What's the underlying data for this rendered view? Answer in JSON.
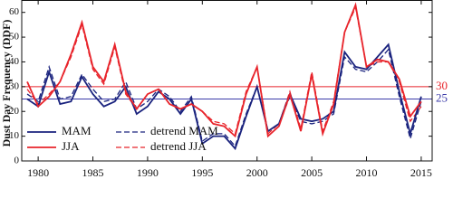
{
  "chart_data": {
    "type": "line",
    "y_label": "Dust Day Frequency (DDF)",
    "x": [
      1979,
      1980,
      1981,
      1982,
      1983,
      1984,
      1985,
      1986,
      1987,
      1988,
      1989,
      1990,
      1991,
      1992,
      1993,
      1994,
      1995,
      1996,
      1997,
      1998,
      1999,
      2000,
      2001,
      2002,
      2003,
      2004,
      2005,
      2006,
      2007,
      2008,
      2009,
      2010,
      2011,
      2012,
      2013,
      2014,
      2015
    ],
    "series": [
      {
        "name": "MAM",
        "color": "#1a237e",
        "dash": false,
        "values": [
          25,
          22,
          36,
          23,
          24,
          34,
          27,
          22,
          24,
          30,
          19,
          22,
          28,
          25,
          19,
          25,
          7,
          10,
          10,
          5,
          18,
          30,
          12,
          15,
          27,
          17,
          16,
          17,
          20,
          44,
          38,
          37,
          42,
          47,
          28,
          11,
          26
        ]
      },
      {
        "name": "JJA",
        "color": "#e8242b",
        "dash": false,
        "values": [
          32,
          22,
          26,
          32,
          43,
          56,
          38,
          32,
          47,
          28,
          21,
          27,
          29,
          23,
          21,
          23,
          20,
          15,
          14,
          10,
          27,
          38,
          10,
          14,
          27,
          12,
          35,
          11,
          23,
          52,
          63,
          38,
          41,
          40,
          33,
          18,
          24
        ]
      },
      {
        "name": "detrend MAM",
        "color": "#1a237e",
        "dash": true,
        "values": [
          27,
          24,
          38,
          25,
          26,
          35,
          29,
          24,
          25,
          32,
          21,
          24,
          29,
          26,
          20,
          26,
          8,
          11,
          11,
          6,
          19,
          30,
          12,
          15,
          26,
          16,
          15,
          16,
          19,
          42,
          37,
          36,
          40,
          45,
          26,
          9,
          24
        ]
      },
      {
        "name": "detrend JJA",
        "color": "#e8242b",
        "dash": true,
        "values": [
          29,
          23,
          27,
          32,
          42,
          55,
          37,
          31,
          46,
          27,
          21,
          27,
          29,
          23,
          21,
          23,
          20,
          16,
          15,
          11,
          28,
          38,
          11,
          15,
          28,
          13,
          36,
          12,
          24,
          52,
          62,
          38,
          40,
          40,
          32,
          16,
          22
        ]
      }
    ],
    "reference_lines": [
      {
        "value": 30,
        "color": "#e8242b"
      },
      {
        "value": 25,
        "color": "#3a3aa8"
      }
    ],
    "xlim": [
      1978.5,
      2016
    ],
    "xticks": [
      1980,
      1985,
      1990,
      1995,
      2000,
      2005,
      2010,
      2015
    ],
    "ylim": [
      0,
      65
    ],
    "yticks": [
      0,
      10,
      20,
      30,
      40,
      50,
      60
    ],
    "legend": "lower-left"
  }
}
